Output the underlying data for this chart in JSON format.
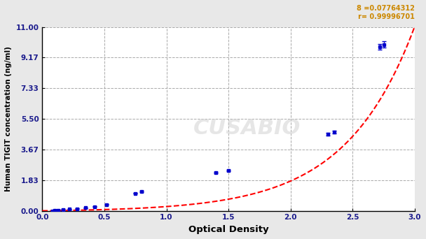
{
  "xlabel": "Optical Density",
  "ylabel": "Human TIGIT concentration (ng/ml)",
  "annotation_line1": "8 =0.07764312",
  "annotation_line2": "r= 0.99996701",
  "xlim": [
    0.0,
    3.0
  ],
  "ylim": [
    0.0,
    11.0
  ],
  "xticks": [
    0.0,
    0.5,
    1.0,
    1.5,
    2.0,
    2.5,
    3.0
  ],
  "yticks": [
    0.0,
    1.83,
    3.67,
    5.5,
    7.33,
    9.17,
    11.0
  ],
  "ytick_labels": [
    "0.00",
    "1.83",
    "3.67",
    "5.50",
    "7.33",
    "9.17",
    "11.00"
  ],
  "xtick_labels": [
    "0.0",
    "0.5",
    "1.0",
    "1.5",
    "2.0",
    "2.5",
    "3.0"
  ],
  "data_points_x": [
    0.08,
    0.1,
    0.13,
    0.17,
    0.22,
    0.28,
    0.35,
    0.42,
    0.52,
    0.75,
    0.8,
    1.4,
    1.5,
    2.3,
    2.35,
    2.72,
    2.75
  ],
  "data_points_y": [
    0.0,
    0.01,
    0.03,
    0.06,
    0.09,
    0.13,
    0.18,
    0.25,
    0.38,
    1.05,
    1.15,
    2.3,
    2.4,
    4.6,
    4.7,
    9.8,
    9.95
  ],
  "curve_color": "#ff0000",
  "point_color": "#0000cc",
  "background_color": "#e8e8e8",
  "plot_bg_color": "#ffffff",
  "grid_color": "#aaaaaa",
  "annotation_color": "#cc8800",
  "watermark_text": "CUSABIO",
  "figwidth": 6.08,
  "figheight": 3.42,
  "dpi": 100
}
